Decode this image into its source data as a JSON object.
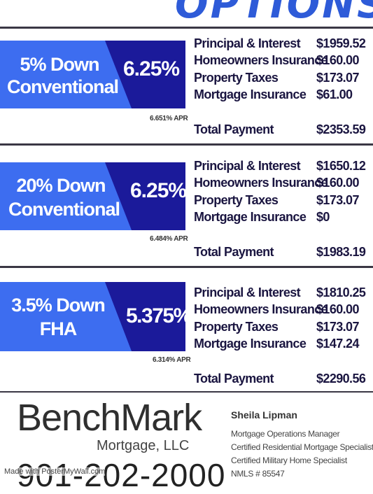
{
  "header": {
    "title_partial": "OPTIONS"
  },
  "options": [
    {
      "down_line1": "5% Down",
      "down_line2": "Conventional",
      "rate": "6.25%",
      "apr": "6.651% APR",
      "rows": [
        {
          "label": "Principal & Interest",
          "value": "$1959.52"
        },
        {
          "label": "Homeowners Insurance",
          "value": "$160.00"
        },
        {
          "label": "Property Taxes",
          "value": "$173.07"
        },
        {
          "label": "Mortgage Insurance",
          "value": "$61.00"
        }
      ],
      "total_label": "Total Payment",
      "total_value": "$2353.59"
    },
    {
      "down_line1": "20% Down",
      "down_line2": "Conventional",
      "rate": "6.25%",
      "apr": "6.484% APR",
      "rows": [
        {
          "label": "Principal & Interest",
          "value": "$1650.12"
        },
        {
          "label": "Homeowners Insurance",
          "value": "$160.00"
        },
        {
          "label": "Property Taxes",
          "value": "$173.07"
        },
        {
          "label": "Mortgage Insurance",
          "value": "$0"
        }
      ],
      "total_label": "Total Payment",
      "total_value": "$1983.19"
    },
    {
      "down_line1": "3.5% Down",
      "down_line2": "FHA",
      "rate": "5.375%",
      "apr": "6.314% APR",
      "rows": [
        {
          "label": "Principal & Interest",
          "value": "$1810.25"
        },
        {
          "label": "Homeowners Insurance",
          "value": "$160.00"
        },
        {
          "label": "Property Taxes",
          "value": "$173.07"
        },
        {
          "label": "Mortgage Insurance",
          "value": "$147.24"
        }
      ],
      "total_label": "Total Payment",
      "total_value": "$2290.56"
    }
  ],
  "footer": {
    "brand": "BenchMark",
    "brand_sub": "Mortgage, LLC",
    "phone": "901-202-2000",
    "watermark": "Made with PosterMyWall.com",
    "contact_name": "Sheila Lipman",
    "credentials": [
      "Mortgage Operations Manager",
      "Certified Residential Mortgage Specialist",
      "Certified Military Home Specialist",
      "NMLS # 85547"
    ]
  },
  "colors": {
    "light_blue": "#3d6df0",
    "dark_blue": "#1b1a9a",
    "text_navy": "#1a1540"
  }
}
